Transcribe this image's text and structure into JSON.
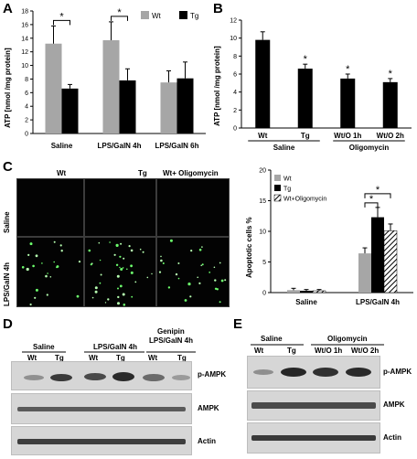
{
  "panels": {
    "a": {
      "letter": "A",
      "ylabel": "ATP [nmol /mg protein]"
    },
    "b": {
      "letter": "B",
      "ylabel": "ATP [nmol /mg protein]"
    },
    "c": {
      "letter": "C",
      "ylabel": "Apoptotic cells %",
      "col_labels": [
        "Wt",
        "Tg",
        "Wt+ Oligomycin"
      ],
      "row_labels": [
        "Saline",
        "LPS/GalN 4h"
      ]
    },
    "d": {
      "letter": "D",
      "groups": [
        "Saline",
        "LPS/GalN 4h",
        "Genipin",
        "LPS/GalN 4h"
      ],
      "lanes": [
        "Wt",
        "Tg",
        "Wt",
        "Tg",
        "Wt",
        "Tg"
      ],
      "rows": [
        "p-AMPK",
        "AMPK",
        "Actin"
      ]
    },
    "e": {
      "letter": "E",
      "groups": [
        "Saline",
        "Oligomycin"
      ],
      "lanes": [
        "Wt",
        "Tg",
        "Wt/O 1h",
        "Wt/O 2h"
      ],
      "rows": [
        "p-AMPK",
        "AMPK",
        "Actin"
      ]
    }
  },
  "chart_data": [
    {
      "type": "bar",
      "ylabel": "ATP [nmol /mg protein]",
      "categories": [
        "Saline",
        "LPS/GalN 4h",
        "LPS/GalN 6h"
      ],
      "series": [
        {
          "name": "Wt",
          "color": "#a6a6a6",
          "values": [
            13.2,
            13.7,
            7.5
          ],
          "errors": [
            2.6,
            2.7,
            1.7
          ]
        },
        {
          "name": "Tg",
          "color": "#000000",
          "values": [
            6.6,
            7.8,
            8.1
          ],
          "errors": [
            0.6,
            1.7,
            2.4
          ]
        }
      ],
      "ylim": [
        0,
        18
      ],
      "yticks": [
        0,
        2,
        4,
        6,
        8,
        10,
        12,
        14,
        16,
        18
      ],
      "significance": [
        {
          "category": "Saline",
          "label": "*"
        },
        {
          "category": "LPS/GalN 4h",
          "label": "*"
        }
      ],
      "legend": "top-right"
    },
    {
      "type": "bar",
      "ylabel": "ATP [nmol /mg protein]",
      "categories": [
        "Wt",
        "Tg",
        "Wt/O 1h",
        "Wt/O 2h"
      ],
      "groups": [
        {
          "label": "Saline",
          "span": [
            0,
            1
          ]
        },
        {
          "label": "Oligomycin",
          "span": [
            2,
            3
          ]
        }
      ],
      "values": [
        9.8,
        6.6,
        5.5,
        5.1
      ],
      "errors": [
        0.9,
        0.5,
        0.5,
        0.4
      ],
      "color": "#000000",
      "ylim": [
        0,
        12
      ],
      "yticks": [
        0,
        2,
        4,
        6,
        8,
        10,
        12
      ],
      "stars": [
        "",
        "*",
        "*",
        "*"
      ]
    },
    {
      "type": "bar",
      "ylabel": "Apoptotic cells %",
      "categories": [
        "Saline",
        "LPS/GalN 4h"
      ],
      "series": [
        {
          "name": "Wt",
          "color": "#a6a6a6",
          "values": [
            0.4,
            6.4
          ],
          "errors": [
            0.3,
            0.9
          ]
        },
        {
          "name": "Tg",
          "color": "#000000",
          "values": [
            0.3,
            12.3
          ],
          "errors": [
            0.2,
            1.6
          ]
        },
        {
          "name": "Wt+Oligomycin",
          "color": "hatched",
          "values": [
            0.3,
            10.1
          ],
          "errors": [
            0.2,
            1.1
          ]
        }
      ],
      "ylim": [
        0,
        20
      ],
      "yticks": [
        0,
        5,
        10,
        15,
        20
      ],
      "significance": [
        {
          "category": "LPS/GalN 4h",
          "pair": [
            "Wt",
            "Tg"
          ],
          "label": "*"
        },
        {
          "category": "LPS/GalN 4h",
          "pair": [
            "Wt",
            "Wt+Oligomycin"
          ],
          "label": "*"
        }
      ],
      "legend": "top-left"
    }
  ]
}
